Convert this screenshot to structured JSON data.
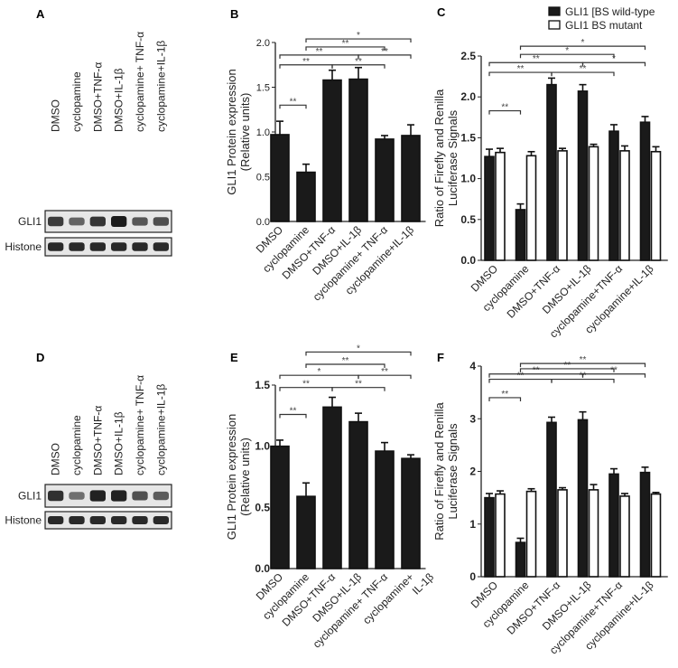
{
  "panels": {
    "A": "A",
    "B": "B",
    "C": "C",
    "D": "D",
    "E": "E",
    "F": "F"
  },
  "blots": [
    {
      "label": "A",
      "lanes": [
        "DMSO",
        "cyclopamine",
        "DMSO+TNF-α",
        "DMSO+IL-1β",
        "cyclopamine+ TNF-α",
        "cyclopamine+IL-1β"
      ],
      "rows": [
        "GLI1",
        "Histone"
      ],
      "gli1_intensity": [
        0.75,
        0.45,
        0.8,
        1.0,
        0.55,
        0.6
      ]
    },
    {
      "label": "D",
      "lanes": [
        "DMSO",
        "cyclopamine",
        "DMSO+TNF-α",
        "DMSO+IL-1β",
        "cyclopamine+ TNF-α",
        "cyclopamine+IL-1β"
      ],
      "rows": [
        "GLI1",
        "Histone"
      ],
      "gli1_intensity": [
        0.85,
        0.35,
        0.95,
        0.95,
        0.6,
        0.5
      ]
    }
  ],
  "chart_data": [
    {
      "panel": "B",
      "type": "bar",
      "ylabel": [
        "GLI1 Protein expression",
        "(Relative units)"
      ],
      "ylim": [
        0,
        2.0
      ],
      "yticks": [
        "0.0",
        "0.5",
        "1.0",
        "1.5",
        "2.0"
      ],
      "ytick_values": [
        0,
        0.5,
        1.0,
        1.5,
        2.0
      ],
      "categories": [
        "DMSO",
        "cyclopamine",
        "DMSO+TNF-α",
        "DMSO+IL-1β",
        "cyclopamine+ TNF-α",
        "cyclopamine+IL-1β"
      ],
      "series": [
        {
          "name": "GLI1",
          "values": [
            0.97,
            0.55,
            1.58,
            1.59,
            0.92,
            0.96
          ],
          "errors": [
            0.15,
            0.09,
            0.11,
            0.13,
            0.04,
            0.12
          ]
        }
      ],
      "significance": [
        {
          "from": 0,
          "to": 1,
          "label": "**",
          "y": 1.3
        },
        {
          "from": 0,
          "to": 2,
          "label": "**",
          "y": 1.75
        },
        {
          "from": 2,
          "to": 4,
          "label": "**",
          "y": 1.75
        },
        {
          "from": 0,
          "to": 3,
          "label": "**",
          "y": 1.86
        },
        {
          "from": 3,
          "to": 5,
          "label": "**",
          "y": 1.86
        },
        {
          "from": 1,
          "to": 4,
          "label": "**",
          "y": 1.95
        },
        {
          "from": 1,
          "to": 5,
          "label": "*",
          "y": 2.04
        }
      ]
    },
    {
      "panel": "C",
      "type": "bar",
      "ylabel": [
        "Ratio of Firefly and Renilla",
        "Luciferase Signals"
      ],
      "ylim": [
        0,
        2.5
      ],
      "yticks": [
        "0.0",
        "0.5",
        "1.0",
        "1.5",
        "2.0",
        "2.5"
      ],
      "ytick_values": [
        0,
        0.5,
        1.0,
        1.5,
        2.0,
        2.5
      ],
      "categories": [
        "DMSO",
        "cyclopamine",
        "DMSO+TNF-α",
        "DMSO+IL-1β",
        "cyclopamine+TNF-α",
        "cyclopamine+IL-1β"
      ],
      "legend": [
        "GLI1 [BS wild-type",
        "GLI1 BS mutant"
      ],
      "legend_position": "top-right",
      "series": [
        {
          "name": "GLI1 [BS wild-type",
          "values": [
            1.27,
            0.62,
            2.15,
            2.07,
            1.58,
            1.69
          ],
          "errors": [
            0.09,
            0.07,
            0.08,
            0.08,
            0.08,
            0.07
          ]
        },
        {
          "name": "GLI1 BS mutant",
          "values": [
            1.32,
            1.28,
            1.34,
            1.39,
            1.34,
            1.33
          ],
          "errors": [
            0.05,
            0.05,
            0.03,
            0.03,
            0.06,
            0.06
          ]
        }
      ],
      "significance": [
        {
          "from": 0,
          "to": 1,
          "label": "**",
          "y": 1.83
        },
        {
          "from": 0,
          "to": 2,
          "label": "**",
          "y": 2.3
        },
        {
          "from": 2,
          "to": 4,
          "label": "**",
          "y": 2.3
        },
        {
          "from": 0,
          "to": 3,
          "label": "**",
          "y": 2.42
        },
        {
          "from": 3,
          "to": 5,
          "label": "*",
          "y": 2.42
        },
        {
          "from": 1,
          "to": 4,
          "label": "*",
          "y": 2.52
        },
        {
          "from": 1,
          "to": 5,
          "label": "*",
          "y": 2.62
        }
      ]
    },
    {
      "panel": "E",
      "type": "bar",
      "ylabel": [
        "GLI1 Protein expression",
        "(Relative units)"
      ],
      "ylim": [
        0,
        1.5
      ],
      "yticks": [
        "0.0",
        "0.5",
        "1.0",
        "1.5"
      ],
      "ytick_values": [
        0,
        0.5,
        1.0,
        1.5
      ],
      "categories": [
        "DMSO",
        "cyclopamine",
        "DMSO+TNF-α",
        "DMSO+IL-1β",
        "cyclopamine+ TNF-α",
        "cyclopamine+"
      ],
      "extra_tick_label": "IL-1β",
      "series": [
        {
          "name": "GLI1",
          "values": [
            1.0,
            0.59,
            1.32,
            1.2,
            0.96,
            0.9
          ],
          "errors": [
            0.05,
            0.11,
            0.08,
            0.07,
            0.07,
            0.03
          ]
        }
      ],
      "significance": [
        {
          "from": 0,
          "to": 1,
          "label": "**",
          "y": 1.26
        },
        {
          "from": 0,
          "to": 2,
          "label": "**",
          "y": 1.48
        },
        {
          "from": 2,
          "to": 4,
          "label": "**",
          "y": 1.48
        },
        {
          "from": 0,
          "to": 3,
          "label": "*",
          "y": 1.58
        },
        {
          "from": 3,
          "to": 5,
          "label": "**",
          "y": 1.58
        },
        {
          "from": 1,
          "to": 4,
          "label": "**",
          "y": 1.67
        },
        {
          "from": 1,
          "to": 5,
          "label": "*",
          "y": 1.77
        }
      ]
    },
    {
      "panel": "F",
      "type": "bar",
      "ylabel": [
        "Ratio of Firefly and Renilla",
        "Luciferase Signals"
      ],
      "ylim": [
        0,
        4
      ],
      "yticks": [
        "0",
        "1",
        "2",
        "3",
        "4"
      ],
      "ytick_values": [
        0,
        1,
        2,
        3,
        4
      ],
      "categories": [
        "DMSO",
        "cyclopamine",
        "DMSO+TNF-α",
        "DMSO+IL-1β",
        "cyclopamine+TNF-α",
        "cyclopamine+IL-1β"
      ],
      "series": [
        {
          "name": "GLI1 [BS wild-type",
          "values": [
            1.5,
            0.65,
            2.93,
            2.98,
            1.95,
            1.98
          ],
          "errors": [
            0.08,
            0.08,
            0.1,
            0.15,
            0.1,
            0.1
          ]
        },
        {
          "name": "GLI1 BS mutant",
          "values": [
            1.57,
            1.62,
            1.65,
            1.65,
            1.53,
            1.57
          ],
          "errors": [
            0.06,
            0.05,
            0.04,
            0.1,
            0.05,
            0.03
          ]
        }
      ],
      "significance": [
        {
          "from": 0,
          "to": 1,
          "label": "**",
          "y": 3.4
        },
        {
          "from": 0,
          "to": 2,
          "label": "**",
          "y": 3.75
        },
        {
          "from": 2,
          "to": 4,
          "label": "**",
          "y": 3.75
        },
        {
          "from": 0,
          "to": 3,
          "label": "**",
          "y": 3.85
        },
        {
          "from": 3,
          "to": 5,
          "label": "**",
          "y": 3.85
        },
        {
          "from": 1,
          "to": 4,
          "label": "**",
          "y": 3.95
        },
        {
          "from": 1,
          "to": 5,
          "label": "**",
          "y": 4.05
        }
      ]
    }
  ]
}
